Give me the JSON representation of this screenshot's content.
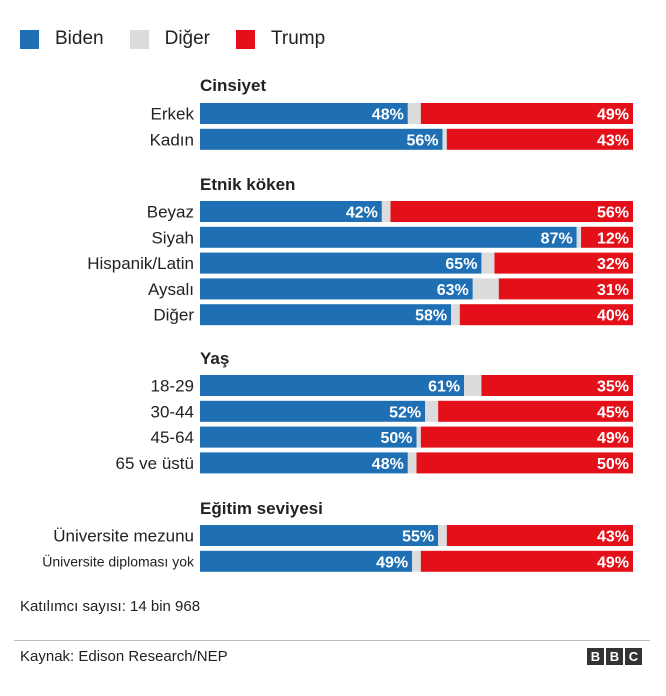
{
  "colors": {
    "biden": "#1f6fb4",
    "other": "#dcdcdc",
    "trump": "#e3101a"
  },
  "legend": [
    {
      "label": "Biden",
      "color": "#1f6fb4"
    },
    {
      "label": "Diğer",
      "color": "#dcdcdc"
    },
    {
      "label": "Trump",
      "color": "#e3101a"
    }
  ],
  "chart_data": {
    "type": "bar",
    "orientation": "horizontal-stacked",
    "series_names": [
      "Biden",
      "Diğer",
      "Trump"
    ],
    "groups": [
      {
        "title": "Cinsiyet",
        "rows": [
          {
            "label": "Erkek",
            "biden": 48,
            "trump": 49,
            "biden_label": "48%",
            "trump_label": "49%"
          },
          {
            "label": "Kadın",
            "biden": 56,
            "trump": 43,
            "biden_label": "56%",
            "trump_label": "43%"
          }
        ]
      },
      {
        "title": "Etnik köken",
        "rows": [
          {
            "label": "Beyaz",
            "biden": 42,
            "trump": 56,
            "biden_label": "42%",
            "trump_label": "56%"
          },
          {
            "label": "Siyah",
            "biden": 87,
            "trump": 12,
            "biden_label": "87%",
            "trump_label": "12%"
          },
          {
            "label": "Hispanik/Latin",
            "biden": 65,
            "trump": 32,
            "biden_label": "65%",
            "trump_label": "32%"
          },
          {
            "label": "Aysalı",
            "biden": 63,
            "trump": 31,
            "biden_label": "63%",
            "trump_label": "31%"
          },
          {
            "label": "Diğer",
            "biden": 58,
            "trump": 40,
            "biden_label": "58%",
            "trump_label": "40%"
          }
        ]
      },
      {
        "title": "Yaş",
        "rows": [
          {
            "label": "18-29",
            "biden": 61,
            "trump": 35,
            "biden_label": "61%",
            "trump_label": "35%"
          },
          {
            "label": "30-44",
            "biden": 52,
            "trump": 45,
            "biden_label": "52%",
            "trump_label": "45%"
          },
          {
            "label": "45-64",
            "biden": 50,
            "trump": 49,
            "biden_label": "50%",
            "trump_label": "49%"
          },
          {
            "label": "65 ve üstü",
            "biden": 48,
            "trump": 50,
            "biden_label": "48%",
            "trump_label": "50%"
          }
        ]
      },
      {
        "title": "Eğitim seviyesi",
        "rows": [
          {
            "label": "Üniversite mezunu",
            "biden": 55,
            "trump": 43,
            "biden_label": "55%",
            "trump_label": "43%"
          },
          {
            "label": "Üniversite diploması yok",
            "biden": 49,
            "trump": 49,
            "biden_label": "49%",
            "trump_label": "49%"
          }
        ]
      }
    ]
  },
  "footnote": "Katılımcı sayısı: 14 bin 968",
  "source": "Kaynak: Edison Research/NEP",
  "brand": [
    "B",
    "B",
    "C"
  ]
}
